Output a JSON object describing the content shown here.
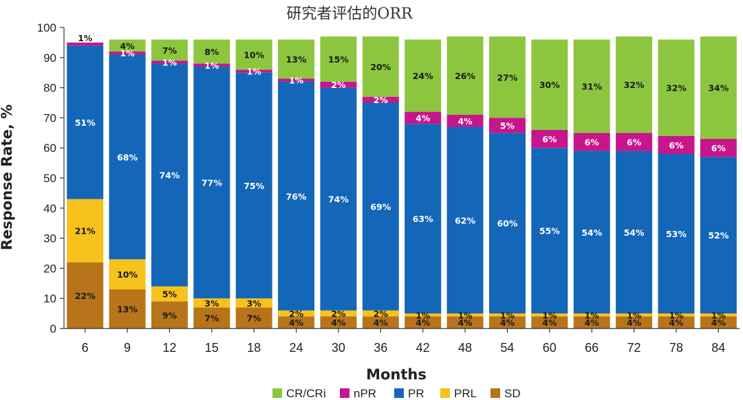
{
  "chart_data": {
    "type": "bar",
    "stacked": true,
    "title": "研究者评估的ORR",
    "xlabel": "Months",
    "ylabel": "Response Rate, %",
    "ylim": [
      0,
      100
    ],
    "yticks": [
      0,
      10,
      20,
      30,
      40,
      50,
      60,
      70,
      80,
      90,
      100
    ],
    "ytick_labels": [
      "0",
      "10",
      "20",
      "30",
      "40",
      "50",
      "60",
      "70",
      "80",
      "90",
      "100"
    ],
    "categories": [
      "6",
      "9",
      "12",
      "15",
      "18",
      "24",
      "30",
      "36",
      "42",
      "48",
      "54",
      "60",
      "66",
      "72",
      "78",
      "84"
    ],
    "series": [
      {
        "name": "SD",
        "color": "#b8741a",
        "label_color": "#1a1a1a",
        "values": [
          22,
          13,
          9,
          7,
          7,
          4,
          4,
          4,
          4,
          4,
          4,
          4,
          4,
          4,
          4,
          4
        ],
        "labels": [
          "22%",
          "13%",
          "9%",
          "7%",
          "7%",
          "4%",
          "4%",
          "4%",
          "4%",
          "4%",
          "4%",
          "4%",
          "4%",
          "4%",
          "4%",
          "4%"
        ]
      },
      {
        "name": "PRL",
        "color": "#f7c21b",
        "label_color": "#1a1a1a",
        "values": [
          21,
          10,
          5,
          3,
          3,
          2,
          2,
          2,
          1,
          1,
          1,
          1,
          1,
          1,
          1,
          1
        ],
        "labels": [
          "21%",
          "10%",
          "5%",
          "3%",
          "3%",
          "2%",
          "2%",
          "2%",
          "1%",
          "1%",
          "1%",
          "1%",
          "1%",
          "1%",
          "1%",
          "1%"
        ]
      },
      {
        "name": "PR",
        "color": "#1466b8",
        "label_color": "#ffffff",
        "values": [
          51,
          68,
          74,
          77,
          75,
          76,
          74,
          69,
          63,
          62,
          60,
          55,
          54,
          54,
          53,
          52
        ],
        "labels": [
          "51%",
          "68%",
          "74%",
          "77%",
          "75%",
          "76%",
          "74%",
          "69%",
          "63%",
          "62%",
          "60%",
          "55%",
          "54%",
          "54%",
          "53%",
          "52%"
        ]
      },
      {
        "name": "nPR",
        "color": "#c7168b",
        "label_color": "#ffffff",
        "values": [
          1,
          1,
          1,
          1,
          1,
          1,
          2,
          2,
          4,
          4,
          5,
          6,
          6,
          6,
          6,
          6
        ],
        "labels": [
          "1%",
          "1%",
          "1%",
          "1%",
          "1%",
          "1%",
          "2%",
          "2%",
          "4%",
          "4%",
          "5%",
          "6%",
          "6%",
          "6%",
          "6%",
          "6%"
        ]
      },
      {
        "name": "CR/CRi",
        "color": "#8cc63f",
        "label_color": "#1a1a1a",
        "values": [
          0,
          4,
          7,
          8,
          10,
          13,
          15,
          20,
          24,
          26,
          27,
          30,
          31,
          32,
          32,
          34
        ],
        "labels": [
          "",
          "4%",
          "7%",
          "8%",
          "10%",
          "13%",
          "15%",
          "20%",
          "24%",
          "26%",
          "27%",
          "30%",
          "31%",
          "32%",
          "32%",
          "34%"
        ]
      }
    ],
    "legend": {
      "placement": "bottom",
      "order": [
        "CR/CRi",
        "nPR",
        "PR",
        "PRL",
        "SD"
      ]
    },
    "grid": false
  }
}
